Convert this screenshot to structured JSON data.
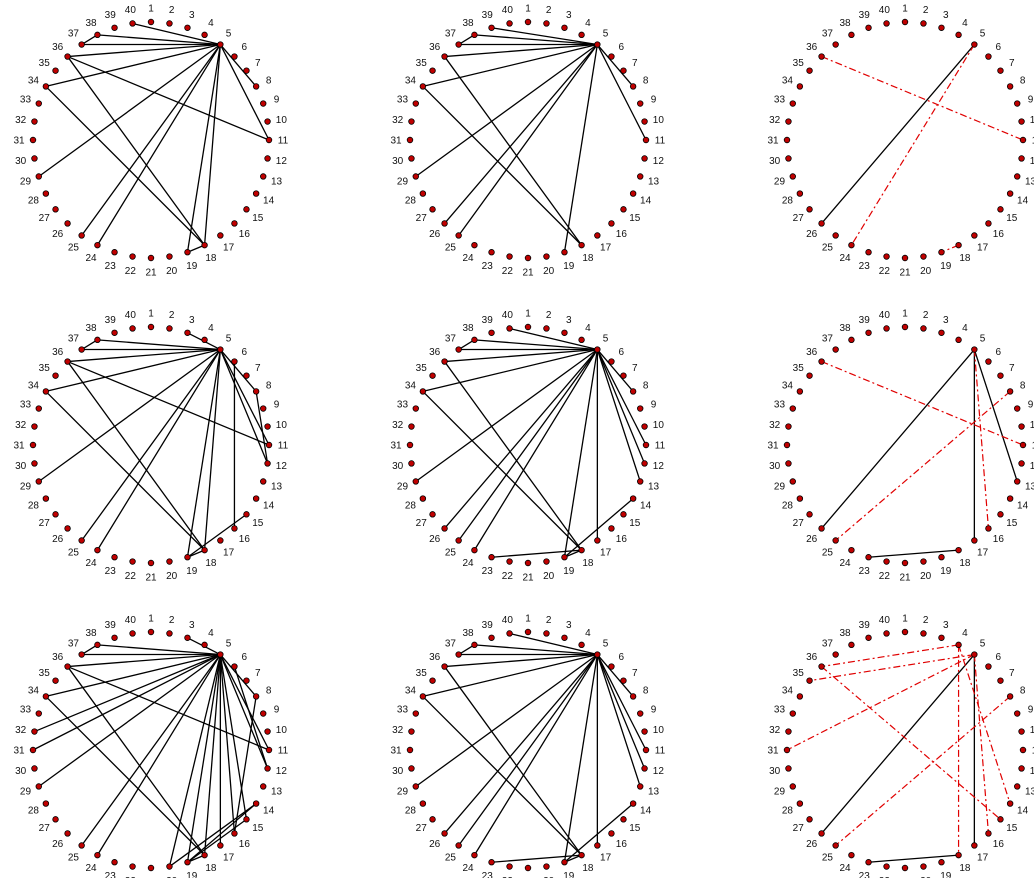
{
  "layout": "3x3 grid of circular network graphs",
  "node_count": 40,
  "node_labels": [
    "1",
    "2",
    "3",
    "4",
    "5",
    "6",
    "7",
    "8",
    "9",
    "10",
    "11",
    "12",
    "13",
    "14",
    "15",
    "16",
    "17",
    "18",
    "19",
    "20",
    "21",
    "22",
    "23",
    "24",
    "25",
    "26",
    "27",
    "28",
    "29",
    "30",
    "31",
    "32",
    "33",
    "34",
    "35",
    "36",
    "37",
    "38",
    "39",
    "40"
  ],
  "colors": {
    "node_fill": "#c00000",
    "edge_solid": "#000000",
    "edge_dashed": "#e00000"
  },
  "panels": [
    {
      "row": 1,
      "col": 1,
      "solid_edges": [
        [
          5,
          38
        ],
        [
          5,
          37
        ],
        [
          5,
          36
        ],
        [
          5,
          34
        ],
        [
          5,
          29
        ],
        [
          5,
          25
        ],
        [
          5,
          24
        ],
        [
          5,
          19
        ],
        [
          5,
          18
        ],
        [
          5,
          11
        ],
        [
          5,
          8
        ],
        [
          36,
          11
        ],
        [
          36,
          18
        ],
        [
          34,
          18
        ],
        [
          18,
          19
        ],
        [
          40,
          5
        ],
        [
          37,
          38
        ]
      ],
      "dashed_edges": []
    },
    {
      "row": 1,
      "col": 2,
      "solid_edges": [
        [
          5,
          38
        ],
        [
          5,
          37
        ],
        [
          5,
          36
        ],
        [
          5,
          34
        ],
        [
          5,
          29
        ],
        [
          5,
          26
        ],
        [
          5,
          25
        ],
        [
          5,
          19
        ],
        [
          5,
          11
        ],
        [
          5,
          8
        ],
        [
          36,
          18
        ],
        [
          34,
          18
        ],
        [
          39,
          5
        ],
        [
          37,
          38
        ]
      ],
      "dashed_edges": []
    },
    {
      "row": 1,
      "col": 3,
      "solid_edges": [
        [
          5,
          26
        ]
      ],
      "dashed_edges": [
        [
          36,
          11
        ],
        [
          5,
          24
        ],
        [
          18,
          19
        ]
      ]
    },
    {
      "row": 2,
      "col": 1,
      "solid_edges": [
        [
          5,
          38
        ],
        [
          5,
          37
        ],
        [
          5,
          36
        ],
        [
          5,
          34
        ],
        [
          5,
          29
        ],
        [
          5,
          25
        ],
        [
          5,
          24
        ],
        [
          5,
          19
        ],
        [
          5,
          18
        ],
        [
          5,
          12
        ],
        [
          5,
          11
        ],
        [
          5,
          8
        ],
        [
          36,
          11
        ],
        [
          36,
          18
        ],
        [
          34,
          18
        ],
        [
          18,
          19
        ],
        [
          19,
          15
        ],
        [
          8,
          12
        ],
        [
          6,
          16
        ],
        [
          3,
          5
        ],
        [
          37,
          38
        ]
      ],
      "dashed_edges": []
    },
    {
      "row": 2,
      "col": 2,
      "solid_edges": [
        [
          5,
          38
        ],
        [
          5,
          37
        ],
        [
          5,
          36
        ],
        [
          5,
          34
        ],
        [
          5,
          29
        ],
        [
          5,
          26
        ],
        [
          5,
          25
        ],
        [
          5,
          24
        ],
        [
          5,
          19
        ],
        [
          5,
          17
        ],
        [
          5,
          13
        ],
        [
          5,
          11
        ],
        [
          5,
          8
        ],
        [
          36,
          18
        ],
        [
          34,
          18
        ],
        [
          18,
          19
        ],
        [
          23,
          18
        ],
        [
          19,
          14
        ],
        [
          40,
          5
        ],
        [
          37,
          38
        ],
        [
          5,
          12
        ]
      ],
      "dashed_edges": []
    },
    {
      "row": 2,
      "col": 3,
      "solid_edges": [
        [
          5,
          26
        ],
        [
          5,
          17
        ],
        [
          5,
          13
        ],
        [
          23,
          18
        ]
      ],
      "dashed_edges": [
        [
          36,
          11
        ],
        [
          8,
          25
        ],
        [
          5,
          16
        ]
      ]
    },
    {
      "row": 3,
      "col": 1,
      "solid_edges": [
        [
          5,
          38
        ],
        [
          5,
          37
        ],
        [
          5,
          36
        ],
        [
          5,
          34
        ],
        [
          5,
          32
        ],
        [
          5,
          31
        ],
        [
          5,
          29
        ],
        [
          5,
          25
        ],
        [
          5,
          24
        ],
        [
          5,
          20
        ],
        [
          5,
          19
        ],
        [
          5,
          18
        ],
        [
          5,
          17
        ],
        [
          5,
          16
        ],
        [
          5,
          15
        ],
        [
          5,
          12
        ],
        [
          5,
          11
        ],
        [
          5,
          8
        ],
        [
          36,
          11
        ],
        [
          36,
          18
        ],
        [
          34,
          18
        ],
        [
          18,
          19
        ],
        [
          19,
          15
        ],
        [
          19,
          14
        ],
        [
          8,
          16
        ],
        [
          6,
          12
        ],
        [
          3,
          5
        ],
        [
          37,
          38
        ],
        [
          20,
          14
        ]
      ],
      "dashed_edges": []
    },
    {
      "row": 3,
      "col": 2,
      "solid_edges": [
        [
          5,
          38
        ],
        [
          5,
          37
        ],
        [
          5,
          36
        ],
        [
          5,
          34
        ],
        [
          5,
          29
        ],
        [
          5,
          26
        ],
        [
          5,
          25
        ],
        [
          5,
          24
        ],
        [
          5,
          19
        ],
        [
          5,
          17
        ],
        [
          5,
          13
        ],
        [
          5,
          11
        ],
        [
          5,
          8
        ],
        [
          36,
          18
        ],
        [
          34,
          18
        ],
        [
          18,
          19
        ],
        [
          23,
          18
        ],
        [
          19,
          14
        ],
        [
          40,
          5
        ],
        [
          37,
          38
        ],
        [
          5,
          12
        ]
      ],
      "dashed_edges": []
    },
    {
      "row": 3,
      "col": 3,
      "solid_edges": [
        [
          5,
          26
        ],
        [
          23,
          18
        ],
        [
          5,
          17
        ]
      ],
      "dashed_edges": [
        [
          5,
          35
        ],
        [
          4,
          36
        ],
        [
          5,
          31
        ],
        [
          8,
          25
        ],
        [
          4,
          18
        ],
        [
          5,
          16
        ],
        [
          36,
          15
        ],
        [
          4,
          14
        ]
      ]
    }
  ]
}
